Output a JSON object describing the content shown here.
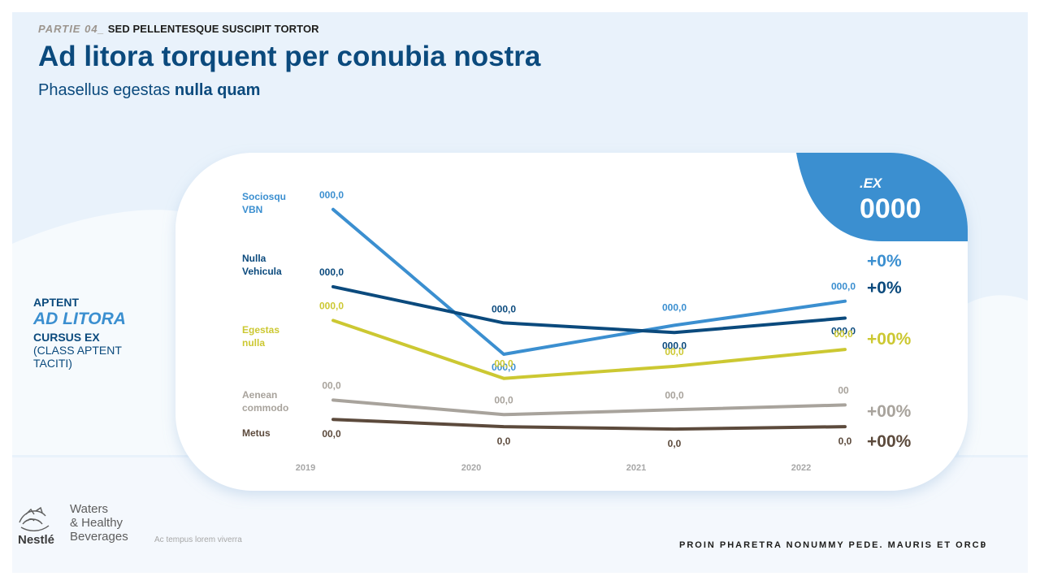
{
  "header": {
    "kicker_part": "PARTIE 04_",
    "kicker_text": "SED PELLENTESQUE SUSCIPIT TORTOR",
    "title": "Ad litora torquent per conubia nostra",
    "subtitle_regular": "Phasellus egestas ",
    "subtitle_bold": "nulla quam"
  },
  "side_note": {
    "line1": "APTENT",
    "line2": "AD LITORA",
    "line3": "CURSUS EX",
    "line4": "(CLASS APTENT TACITI)"
  },
  "badge": {
    "label": ".EX",
    "value": "0000",
    "color": "#3b8fd0"
  },
  "footer": {
    "text": "PROIN PHARETRA NONUMMY PEDE. MAURIS ET ORCI",
    "page": "9",
    "caption": "Ac tempus lorem viverra",
    "brand_line1": "Waters",
    "brand_line2": "& Healthy",
    "brand_line3": "Beverages",
    "logo_text": "Nestlé"
  },
  "chart_data": {
    "type": "line",
    "x": [
      "2019",
      "2020",
      "2021",
      "2022"
    ],
    "yaxis_visible": false,
    "ylim": [
      0,
      100
    ],
    "series": [
      {
        "name": "Sociosqu VBN",
        "name_lines": [
          "Sociosqu",
          "VBN"
        ],
        "color": "#3b8fd0",
        "values": [
          94,
          34,
          46,
          56
        ],
        "labels": [
          "000,0",
          "000,0",
          "000,0",
          "000,0"
        ],
        "change": "+0%"
      },
      {
        "name": "Nulla Vehicula",
        "name_lines": [
          "Nulla",
          "Vehicula"
        ],
        "color": "#0b4a7d",
        "values": [
          62,
          47,
          43,
          49
        ],
        "labels": [
          "000,0",
          "000,0",
          "000,0",
          "000,0"
        ],
        "change": "+0%"
      },
      {
        "name": "Egestas nulla",
        "name_lines": [
          "Egestas",
          "nulla"
        ],
        "color": "#ccc832",
        "values": [
          48,
          24,
          29,
          36
        ],
        "labels": [
          "000,0",
          "00,0",
          "00,0",
          "00,0"
        ],
        "change": "+00%"
      },
      {
        "name": "Aenean commodo",
        "name_lines": [
          "Aenean",
          "commodo"
        ],
        "color": "#a8a39c",
        "values": [
          15,
          9,
          11,
          13
        ],
        "labels": [
          "00,0",
          "00,0",
          "00,0",
          "00"
        ],
        "change": "+00%"
      },
      {
        "name": "Metus",
        "name_lines": [
          "Metus"
        ],
        "color": "#5c4a3c",
        "values": [
          7,
          4,
          3,
          4
        ],
        "labels": [
          "00,0",
          "0,0",
          "0,0",
          "0,0"
        ],
        "change": "+00%"
      }
    ]
  }
}
